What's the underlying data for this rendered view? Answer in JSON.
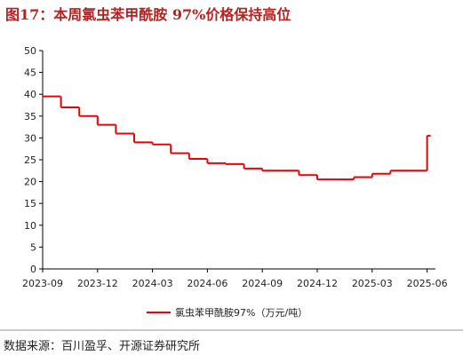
{
  "chart_data": {
    "type": "line",
    "title": "图17：本周氯虫苯甲酰胺 97%价格保持高位",
    "source": "数据来源：百川盈孚、开源证券研究所",
    "x": [
      "2023-09",
      "2023-10",
      "2023-11",
      "2023-12",
      "2024-01",
      "2024-02",
      "2024-03",
      "2024-04",
      "2024-05",
      "2024-06",
      "2024-07",
      "2024-08",
      "2024-09",
      "2024-10",
      "2024-11",
      "2024-12",
      "2025-01",
      "2025-02",
      "2025-03",
      "2025-04",
      "2025-05",
      "2025-06"
    ],
    "series": [
      {
        "name": "氯虫苯甲酰胺97%（万元/吨）",
        "color": "#e8000b",
        "values": [
          39.5,
          37,
          35,
          33,
          31,
          29,
          28.5,
          26.5,
          25.2,
          24.2,
          24,
          23,
          22.5,
          22.5,
          21.5,
          20.5,
          20.5,
          21,
          21.8,
          22.5,
          22.5,
          30.5
        ]
      }
    ],
    "xticks": [
      "2023-09",
      "2023-12",
      "2024-03",
      "2024-06",
      "2024-09",
      "2024-12",
      "2025-03",
      "2025-06"
    ],
    "ylim": [
      0,
      50
    ],
    "yticks": [
      0,
      5,
      10,
      15,
      20,
      25,
      30,
      35,
      40,
      45,
      50
    ],
    "grid": false
  }
}
